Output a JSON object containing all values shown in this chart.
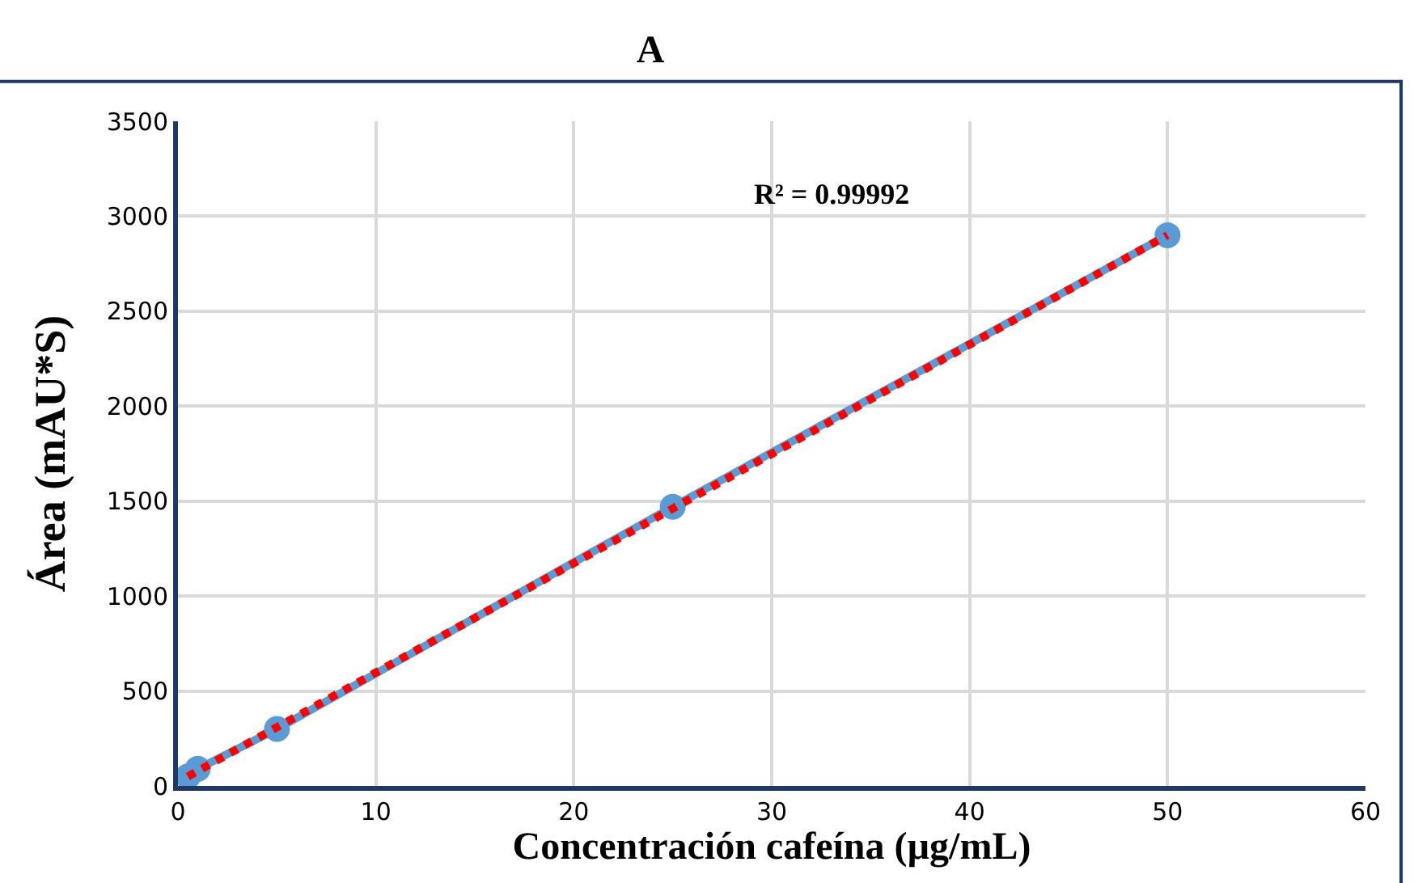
{
  "chart_data": {
    "type": "line",
    "title": "A",
    "xlabel": "Concentración cafeína (µg/mL)",
    "ylabel": "Área (mAU*S)",
    "x": [
      0.5,
      1,
      5,
      25,
      50
    ],
    "series": [
      {
        "color": "#5b9bd5",
        "marker": "circle",
        "line_style": "solid",
        "values": [
          50,
          90,
          300,
          1470,
          2900
        ]
      },
      {
        "color": "#ff0000",
        "marker": "none",
        "line_style": "dotted",
        "x": [
          0.5,
          50
        ],
        "values": [
          50,
          2900
        ]
      }
    ],
    "xlim": [
      0,
      60
    ],
    "xticks": [
      0,
      10,
      20,
      30,
      40,
      50,
      60
    ],
    "ylim": [
      0,
      3500
    ],
    "yticks": [
      0,
      500,
      1000,
      1500,
      2000,
      2500,
      3000,
      3500
    ],
    "grid": true,
    "annotations": [
      "R² = 0.99992"
    ]
  }
}
